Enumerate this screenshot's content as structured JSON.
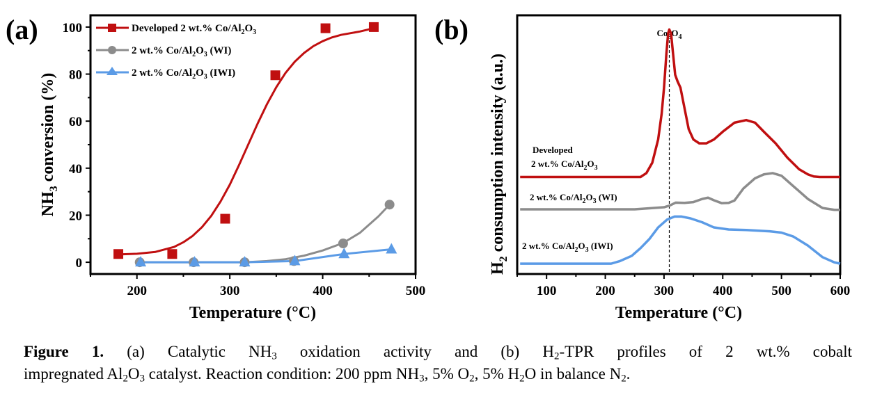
{
  "chart_data": [
    {
      "panel": "(a)",
      "type": "scatter",
      "xlabel": "Temperature (°C)",
      "ylabel": "NH3 conversion (%)",
      "xlim": [
        150,
        500
      ],
      "ylim": [
        -5,
        105
      ],
      "xticks": [
        200,
        300,
        400,
        500
      ],
      "yticks": [
        0,
        20,
        40,
        60,
        80,
        100
      ],
      "grid": false,
      "legend_position": "top-left",
      "series": [
        {
          "name": "Developed 2 wt.% Co/Al2O3",
          "color": "#c00f10",
          "marker": "square",
          "x": [
            180,
            238,
            295,
            349,
            403,
            455
          ],
          "y": [
            3.5,
            3.5,
            18.5,
            79.5,
            99.5,
            100
          ],
          "fit_x": [
            180,
            200,
            220,
            240,
            250,
            260,
            270,
            280,
            290,
            300,
            310,
            320,
            330,
            340,
            350,
            360,
            370,
            380,
            390,
            400,
            410,
            420,
            440,
            455
          ],
          "fit_y": [
            3.3,
            3.6,
            4.4,
            6.5,
            8.5,
            11.2,
            14.9,
            19.7,
            25.8,
            33.0,
            41.4,
            50.2,
            59.0,
            67.2,
            74.4,
            80.5,
            85.3,
            89.0,
            91.9,
            94.0,
            95.6,
            96.7,
            98.1,
            99.5
          ]
        },
        {
          "name": "2 wt.% Co/Al2O3 (WI)",
          "color": "#8c8c8c",
          "marker": "circle",
          "x": [
            203,
            261,
            316,
            369,
            422,
            472
          ],
          "y": [
            0,
            0,
            0,
            0.5,
            8,
            24.5
          ],
          "fit_x": [
            203,
            261,
            316,
            340,
            360,
            380,
            400,
            422,
            440,
            460,
            472
          ],
          "fit_y": [
            0,
            0,
            0,
            0.5,
            1.3,
            2.8,
            5,
            8.2,
            12.5,
            19.5,
            24.5
          ]
        },
        {
          "name": "2 wt.% Co/Al2O3 (IWI)",
          "color": "#5b9be6",
          "marker": "triangle",
          "x": [
            204,
            262,
            316,
            370,
            423,
            474
          ],
          "y": [
            0,
            0,
            0,
            0.5,
            3.5,
            5.5
          ]
        }
      ]
    },
    {
      "panel": "(b)",
      "type": "line",
      "xlabel": "Temperature (°C)",
      "ylabel": "H2 consumption intensity (a.u.)",
      "xlim": [
        50,
        600
      ],
      "ylim": [
        0,
        1
      ],
      "xticks": [
        100,
        200,
        300,
        400,
        500,
        600
      ],
      "yticks": [],
      "grid": false,
      "annotation": {
        "label": "Co3O4",
        "x": 309,
        "style": "dashed vertical line"
      },
      "series": [
        {
          "name": "Developed 2 wt.% Co/Al2O3",
          "label_lines": [
            "Developed",
            "2 wt.% Co/Al2O3"
          ],
          "color": "#c00f10",
          "x": [
            55,
            260,
            270,
            280,
            290,
            296,
            300,
            304,
            307,
            309,
            312,
            315,
            319,
            323,
            328,
            335,
            342,
            350,
            360,
            372,
            385,
            400,
            420,
            440,
            455,
            470,
            490,
            510,
            530,
            545,
            555,
            565,
            600
          ],
          "y": [
            0.375,
            0.375,
            0.39,
            0.43,
            0.52,
            0.62,
            0.72,
            0.85,
            0.93,
            0.945,
            0.93,
            0.86,
            0.77,
            0.745,
            0.72,
            0.64,
            0.56,
            0.52,
            0.505,
            0.505,
            0.52,
            0.55,
            0.585,
            0.595,
            0.585,
            0.55,
            0.505,
            0.45,
            0.405,
            0.385,
            0.377,
            0.375,
            0.375
          ]
        },
        {
          "name": "2 wt.% Co/Al2O3 (WI)",
          "label_lines": [
            "2 wt.% Co/Al2O3 (WI)"
          ],
          "color": "#8c8c8c",
          "x": [
            55,
            250,
            300,
            310,
            320,
            335,
            350,
            365,
            375,
            385,
            398,
            410,
            420,
            435,
            455,
            470,
            485,
            500,
            520,
            545,
            570,
            590,
            600
          ],
          "y": [
            0.25,
            0.25,
            0.258,
            0.265,
            0.276,
            0.275,
            0.278,
            0.29,
            0.295,
            0.285,
            0.274,
            0.275,
            0.284,
            0.33,
            0.37,
            0.385,
            0.39,
            0.38,
            0.34,
            0.29,
            0.255,
            0.248,
            0.248
          ]
        },
        {
          "name": "2 wt.% Co/Al2O3 (IWI)",
          "label_lines": [
            "2 wt.% Co/Al2O3 (IWI)"
          ],
          "color": "#5b9be6",
          "x": [
            55,
            210,
            225,
            245,
            260,
            275,
            290,
            305,
            318,
            330,
            345,
            365,
            385,
            410,
            440,
            480,
            500,
            520,
            545,
            570,
            590,
            600
          ],
          "y": [
            0.04,
            0.04,
            0.05,
            0.07,
            0.1,
            0.135,
            0.18,
            0.21,
            0.222,
            0.222,
            0.215,
            0.2,
            0.18,
            0.172,
            0.17,
            0.165,
            0.16,
            0.145,
            0.11,
            0.065,
            0.045,
            0.04
          ]
        }
      ]
    }
  ],
  "figure": {
    "panel_a_label": "(a)",
    "panel_b_label": "(b)",
    "legend_a": [
      {
        "main": "Developed 2 wt.% Co/Al",
        "sub1": "2",
        "mid": "O",
        "sub2": "3",
        "tail": ""
      },
      {
        "main": "2 wt.% Co/Al",
        "sub1": "2",
        "mid": "O",
        "sub2": "3",
        "tail": " (WI)"
      },
      {
        "main": "2 wt.% Co/Al",
        "sub1": "2",
        "mid": "O",
        "sub2": "3",
        "tail": " (IWI)"
      }
    ],
    "a_xlabel": "Temperature (°C)",
    "a_ylabel_pre": "NH",
    "a_ylabel_sub": "3",
    "a_ylabel_post": " conversion (%)",
    "b_xlabel": "Temperature (°C)",
    "b_ylabel_pre": "H",
    "b_ylabel_sub": "2",
    "b_ylabel_post": " consumption intensity (a.u.)",
    "b_annotation_pre": "Co",
    "b_annotation_sub1": "3",
    "b_annotation_mid": "O",
    "b_annotation_sub2": "4",
    "b_labels": [
      {
        "l1": "Developed",
        "l2_main": "2 wt.% Co/Al",
        "sub1": "2",
        "mid": "O",
        "sub2": "3",
        "tail": ""
      },
      {
        "l2_main": "2 wt.% Co/Al",
        "sub1": "2",
        "mid": "O",
        "sub2": "3",
        "tail": " (WI)"
      },
      {
        "l2_main": "2 wt.% Co/Al",
        "sub1": "2",
        "mid": "O",
        "sub2": "3",
        "tail": " (IWI)"
      }
    ]
  },
  "caption": {
    "label": "Figure 1.",
    "p1": " (a) Catalytic NH",
    "s1": "3",
    "p2": " oxidation activity and (b) H",
    "s2": "2",
    "p3": "-TPR profiles of 2 wt.% cobalt",
    "p4": "impregnated Al",
    "s3": "2",
    "p5": "O",
    "s4": "3",
    "p6": " catalyst. Reaction condition: 200 ppm NH",
    "s5": "3",
    "p7": ", 5% O",
    "s6": "2",
    "p8": ", 5% H",
    "s7": "2",
    "p9": "O in balance N",
    "s8": "2",
    "p10": "."
  }
}
